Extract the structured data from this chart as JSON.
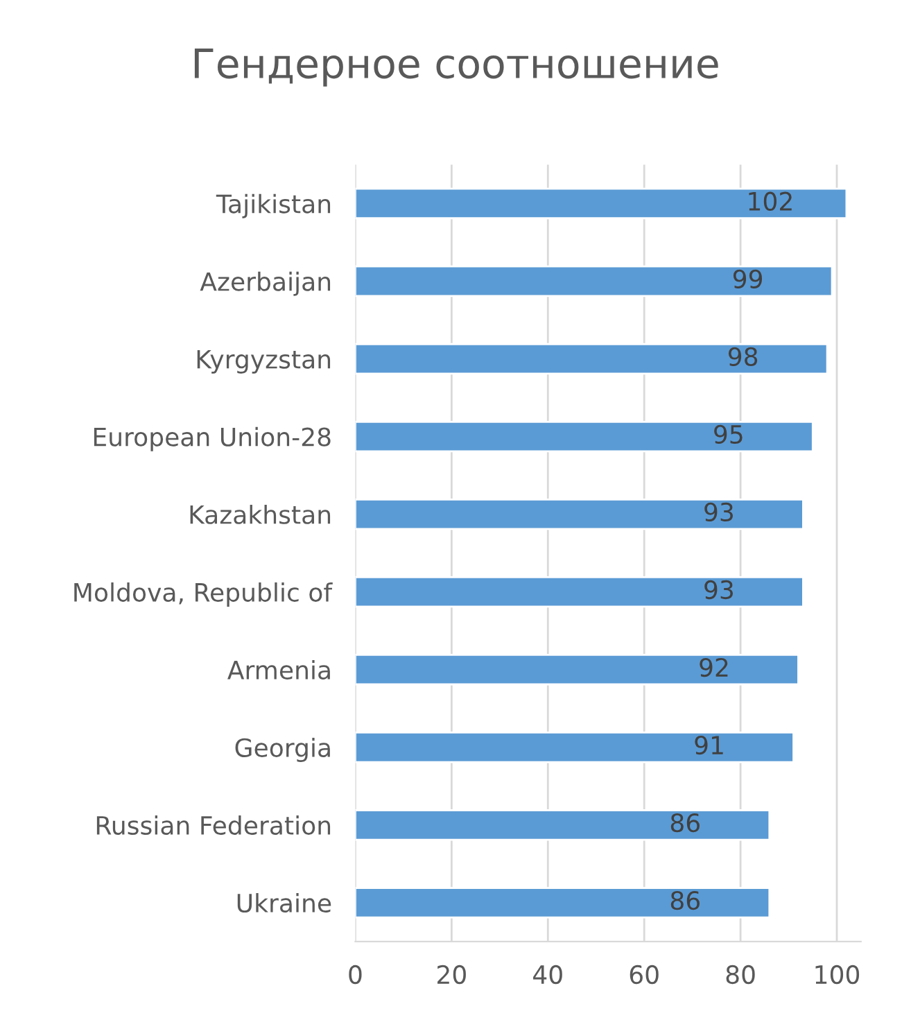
{
  "chart_data": {
    "type": "bar",
    "orientation": "horizontal",
    "title": "Гендерное соотношение",
    "categories": [
      "Tajikistan",
      "Azerbaijan",
      "Kyrgyzstan",
      "European Union-28",
      "Kazakhstan",
      "Moldova, Republic of",
      "Armenia",
      "Georgia",
      "Russian Federation",
      "Ukraine"
    ],
    "values": [
      102,
      99,
      98,
      95,
      93,
      93,
      92,
      91,
      86,
      86
    ],
    "color": "#5b9bd5",
    "data_labels": true,
    "xlim": [
      0,
      105
    ],
    "xticks": [
      0,
      20,
      40,
      60,
      80,
      100
    ],
    "grid": "x",
    "legend": false
  }
}
